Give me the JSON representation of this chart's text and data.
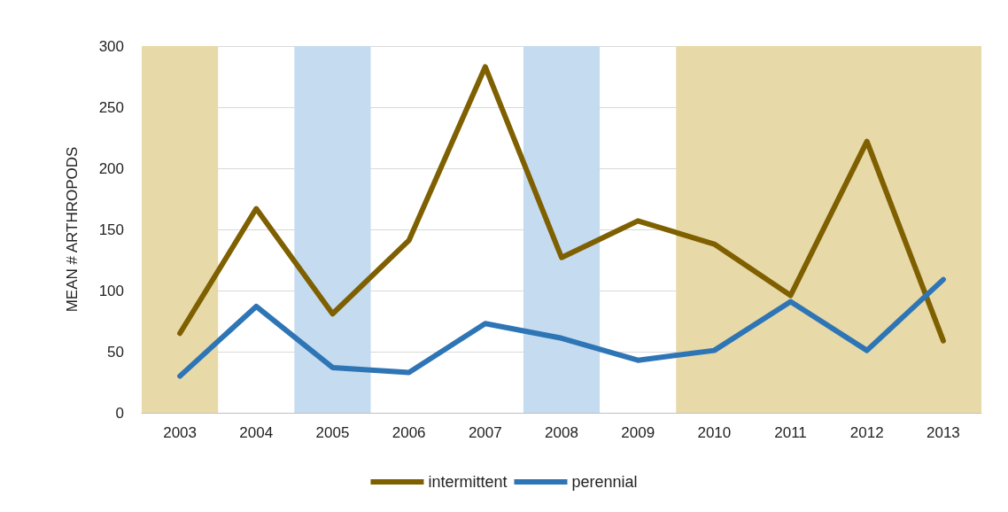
{
  "chart_data": {
    "type": "line",
    "ylabel": "MEAN # ARTHROPODS",
    "categories": [
      "2003",
      "2004",
      "2005",
      "2006",
      "2007",
      "2008",
      "2009",
      "2010",
      "2011",
      "2012",
      "2013"
    ],
    "series": [
      {
        "name": "intermittent",
        "color": "#7f6000",
        "values": [
          65,
          167,
          81,
          141,
          283,
          127,
          157,
          138,
          96,
          222,
          59
        ]
      },
      {
        "name": "perennial",
        "color": "#2e75b6",
        "values": [
          30,
          87,
          37,
          33,
          73,
          61,
          43,
          51,
          91,
          51,
          109
        ]
      }
    ],
    "bands": [
      {
        "axis": "x",
        "from": "2003",
        "to": "2003",
        "color": "#e8d9a8"
      },
      {
        "axis": "x",
        "from": "2005",
        "to": "2005",
        "color": "#c5dbf0"
      },
      {
        "axis": "x",
        "from": "2008",
        "to": "2008",
        "color": "#c5dbf0"
      },
      {
        "axis": "x",
        "from": "2010",
        "to": "2013",
        "color": "#e8d9a8"
      }
    ],
    "ylim": [
      0,
      300
    ],
    "yticks": [
      0,
      50,
      100,
      150,
      200,
      250,
      300
    ],
    "grid": "y",
    "legend": "bottom",
    "marker": "none",
    "line_style": "solid"
  }
}
